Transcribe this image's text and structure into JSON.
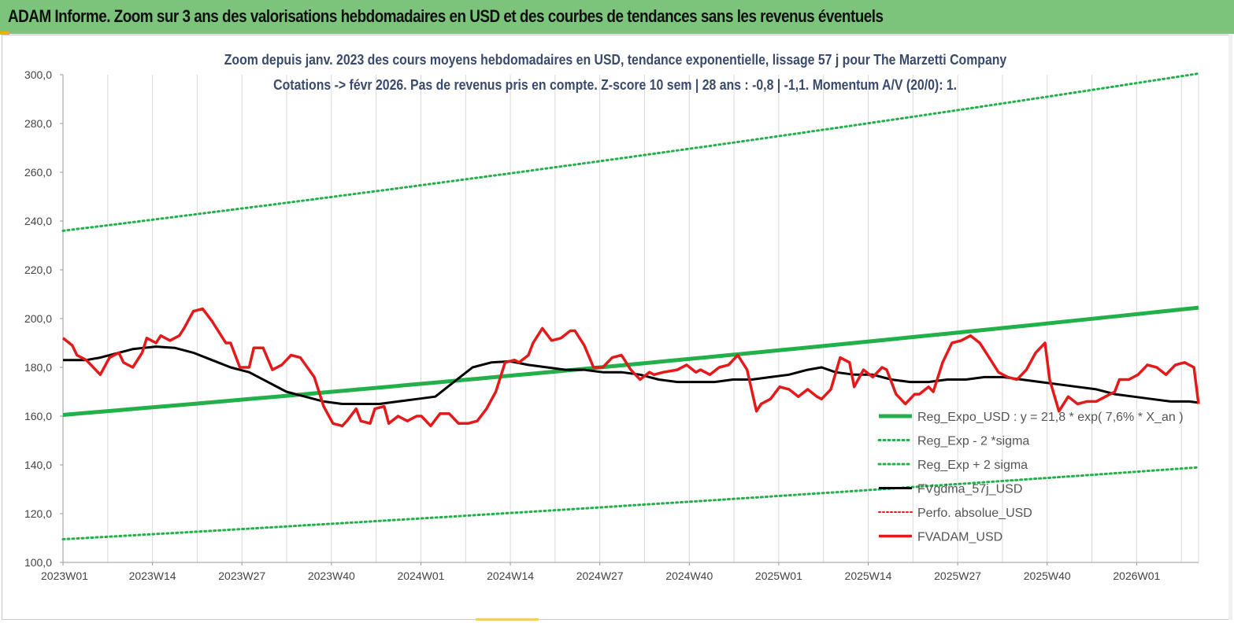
{
  "banner": {
    "title": "ADAM Informe. Zoom sur 3 ans des valorisations hebdomadaires en USD et des courbes de tendances sans les revenus éventuels"
  },
  "colors": {
    "banner": "#7cc47c",
    "trend": "#22b04a",
    "band": "#22b04a",
    "smooth": "#000000",
    "price": "#e41a1a",
    "perf": "#e41a1a",
    "grid": "#d9d9d9"
  },
  "chart_data": {
    "type": "line",
    "title_line1": "Zoom depuis janv. 2023 des cours moyens hebdomadaires en USD, tendance exponentielle, lissage 57 j pour The Marzetti Company",
    "title_line2": "Cotations -> févr 2026.  Pas de revenus pris en compte. Z-score 10 sem  | 28 ans : -0,8  | -1,1. Momentum A/V (20/0): 1.",
    "ylim": [
      100,
      300
    ],
    "y_ticks": [
      "100,0",
      "120,0",
      "140,0",
      "160,0",
      "180,0",
      "200,0",
      "220,0",
      "240,0",
      "260,0",
      "280,0",
      "300,0"
    ],
    "x_tick_labels": [
      "2023W01",
      "2023W14",
      "2023W27",
      "2023W40",
      "2024W01",
      "2024W14",
      "2024W27",
      "2024W40",
      "2025W01",
      "2025W14",
      "2025W27",
      "2025W40",
      "2026W01"
    ],
    "x_tick_index": [
      0,
      13,
      26,
      39,
      52,
      65,
      78,
      91,
      104,
      117,
      130,
      143,
      156
    ],
    "x_max_index": 165,
    "grid": "vertical",
    "legend_position": "bottom-right",
    "series": [
      {
        "name": "Reg_Expo_USD : y = 21,8 * exp( 7,6% *  X_an )",
        "style": "solid-thick",
        "start": 160.5,
        "end": 204.5
      },
      {
        "name": "Reg_Exp - 2 *sigma",
        "style": "dotted",
        "start": 109.5,
        "end": 139.0
      },
      {
        "name": "Reg_Exp + 2 sigma",
        "style": "dotted",
        "start": 236.0,
        "end": 300.5
      },
      {
        "name": "FVgdma_57j_USD",
        "style": "solid-black",
        "points": [
          [
            0,
            183
          ],
          [
            5,
            183
          ],
          [
            8,
            184
          ],
          [
            12,
            186
          ],
          [
            15,
            187.5
          ],
          [
            20,
            188.5
          ],
          [
            24,
            188
          ],
          [
            28,
            186
          ],
          [
            32,
            183
          ],
          [
            36,
            180
          ],
          [
            40,
            178
          ],
          [
            44,
            174
          ],
          [
            48,
            170
          ],
          [
            52,
            168
          ],
          [
            56,
            166
          ],
          [
            60,
            165
          ],
          [
            64,
            165
          ],
          [
            68,
            165
          ],
          [
            72,
            166
          ],
          [
            76,
            167
          ],
          [
            80,
            168
          ],
          [
            84,
            174
          ],
          [
            88,
            180
          ],
          [
            92,
            182
          ],
          [
            96,
            182.5
          ],
          [
            100,
            181
          ],
          [
            104,
            180
          ],
          [
            108,
            179
          ],
          [
            112,
            179
          ],
          [
            116,
            178
          ],
          [
            120,
            178
          ],
          [
            124,
            177
          ],
          [
            128,
            175
          ],
          [
            132,
            174
          ],
          [
            136,
            174
          ],
          [
            140,
            174
          ],
          [
            144,
            175
          ],
          [
            148,
            175
          ],
          [
            152,
            176
          ],
          [
            156,
            177
          ],
          [
            160,
            179
          ],
          [
            163,
            180
          ],
          [
            166,
            178
          ],
          [
            170,
            177
          ],
          [
            174,
            177
          ],
          [
            178,
            175
          ],
          [
            182,
            174
          ],
          [
            186,
            174
          ],
          [
            190,
            175
          ],
          [
            194,
            175
          ],
          [
            198,
            176
          ],
          [
            202,
            176
          ],
          [
            206,
            175
          ],
          [
            210,
            174
          ],
          [
            214,
            173
          ],
          [
            218,
            172
          ],
          [
            222,
            171
          ],
          [
            226,
            169
          ],
          [
            230,
            168
          ],
          [
            234,
            167
          ],
          [
            238,
            166
          ],
          [
            242,
            166
          ],
          [
            244,
            165.5
          ]
        ]
      },
      {
        "name": "Perfo. absolue_USD",
        "style": "dotted",
        "points": []
      },
      {
        "name": "FVADAM_USD",
        "style": "solid-red",
        "points": [
          [
            0,
            192
          ],
          [
            2,
            189
          ],
          [
            3,
            185
          ],
          [
            5,
            183
          ],
          [
            7,
            179
          ],
          [
            8,
            177
          ],
          [
            10,
            184
          ],
          [
            12,
            186
          ],
          [
            13,
            182
          ],
          [
            15,
            180
          ],
          [
            17,
            186
          ],
          [
            18,
            192
          ],
          [
            20,
            190
          ],
          [
            21,
            193
          ],
          [
            23,
            191
          ],
          [
            25,
            193
          ],
          [
            26,
            196
          ],
          [
            28,
            203
          ],
          [
            30,
            204
          ],
          [
            32,
            199
          ],
          [
            33,
            196
          ],
          [
            35,
            190
          ],
          [
            36,
            190
          ],
          [
            38,
            180
          ],
          [
            40,
            180
          ],
          [
            41,
            188
          ],
          [
            43,
            188
          ],
          [
            45,
            179
          ],
          [
            47,
            181
          ],
          [
            49,
            185
          ],
          [
            51,
            184
          ],
          [
            54,
            176
          ],
          [
            56,
            164
          ],
          [
            58,
            157
          ],
          [
            60,
            156
          ],
          [
            61,
            158
          ],
          [
            63,
            163
          ],
          [
            64,
            158
          ],
          [
            66,
            157
          ],
          [
            67,
            163
          ],
          [
            69,
            164
          ],
          [
            70,
            157
          ],
          [
            72,
            160
          ],
          [
            74,
            158
          ],
          [
            76,
            160
          ],
          [
            77,
            160
          ],
          [
            79,
            156
          ],
          [
            81,
            161
          ],
          [
            83,
            161
          ],
          [
            85,
            157
          ],
          [
            87,
            157
          ],
          [
            89,
            158
          ],
          [
            91,
            163
          ],
          [
            93,
            170
          ],
          [
            95,
            182
          ],
          [
            97,
            183
          ],
          [
            98,
            182
          ],
          [
            100,
            185
          ],
          [
            101,
            190
          ],
          [
            103,
            196
          ],
          [
            105,
            191
          ],
          [
            107,
            192
          ],
          [
            109,
            195
          ],
          [
            110,
            195
          ],
          [
            112,
            189
          ],
          [
            114,
            180
          ],
          [
            116,
            180
          ],
          [
            118,
            184
          ],
          [
            120,
            185
          ],
          [
            122,
            179
          ],
          [
            124,
            175
          ],
          [
            126,
            178
          ],
          [
            127,
            177
          ],
          [
            129,
            178
          ],
          [
            132,
            179
          ],
          [
            134,
            181
          ],
          [
            136,
            178
          ],
          [
            137,
            179
          ],
          [
            139,
            177
          ],
          [
            141,
            180
          ],
          [
            143,
            181
          ],
          [
            145,
            185
          ],
          [
            147,
            179
          ],
          [
            149,
            162
          ],
          [
            150,
            165
          ],
          [
            152,
            167
          ],
          [
            154,
            172
          ],
          [
            156,
            171
          ],
          [
            158,
            168
          ],
          [
            160,
            171
          ],
          [
            162,
            168
          ],
          [
            163,
            167
          ],
          [
            165,
            171
          ],
          [
            167,
            184
          ],
          [
            169,
            182
          ],
          [
            170,
            172
          ],
          [
            172,
            179
          ],
          [
            174,
            176
          ],
          [
            176,
            180
          ],
          [
            177,
            179
          ],
          [
            179,
            169
          ],
          [
            181,
            165
          ],
          [
            183,
            169
          ],
          [
            184,
            169
          ],
          [
            186,
            172
          ],
          [
            187,
            170
          ],
          [
            189,
            182
          ],
          [
            191,
            190
          ],
          [
            193,
            191
          ],
          [
            195,
            193
          ],
          [
            197,
            190
          ],
          [
            199,
            184
          ],
          [
            201,
            178
          ],
          [
            203,
            176
          ],
          [
            205,
            175
          ],
          [
            207,
            179
          ],
          [
            209,
            186
          ],
          [
            211,
            190
          ],
          [
            212,
            175
          ],
          [
            214,
            162
          ],
          [
            216,
            168
          ],
          [
            218,
            165
          ],
          [
            220,
            166
          ],
          [
            222,
            166
          ],
          [
            224,
            168
          ],
          [
            226,
            170
          ],
          [
            227,
            175
          ],
          [
            229,
            175
          ],
          [
            231,
            177
          ],
          [
            233,
            181
          ],
          [
            235,
            180
          ],
          [
            237,
            177
          ],
          [
            239,
            181
          ],
          [
            241,
            182
          ],
          [
            243,
            180
          ],
          [
            244,
            165
          ]
        ]
      }
    ]
  }
}
